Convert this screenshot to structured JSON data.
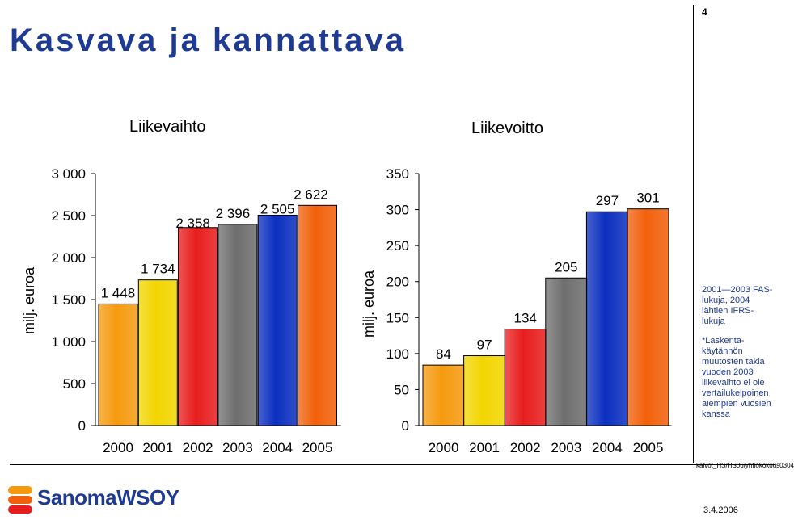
{
  "header": {
    "title": "Kasvava ja kannattava",
    "page_number": "4"
  },
  "footer": {
    "reference": "kalvot_HS/HS06/yhtiökokous0304",
    "date": "3.4.2006",
    "logo_text": "SanomaWSOY"
  },
  "notes": {
    "note1": "2001—2003 FAS-lukuja, 2004 lähtien IFRS-lukuja",
    "note2": "*Laskenta-käytännön muutosten takia vuoden 2003 liikevaihto ei ole vertailukelpoinen aiempien vuosien kanssa"
  },
  "colors": {
    "title": "#1f3a93",
    "bars": [
      "#f59a0e",
      "#f2d500",
      "#e81d1d",
      "#6e6e6e",
      "#0b2fbf",
      "#f2600a"
    ]
  },
  "chart_data": [
    {
      "type": "bar",
      "title": "Liikevaihto",
      "ylabel": "milj. euroa",
      "categories": [
        "2000",
        "2001",
        "2002",
        "2003",
        "2004",
        "2005"
      ],
      "values": [
        1448,
        1734,
        2358,
        2396,
        2505,
        2622
      ],
      "value_labels": [
        "1 448",
        "1 734",
        "2 358",
        "2 396",
        "2 505",
        "2 622"
      ],
      "yticks": [
        0,
        500,
        1000,
        1500,
        2000,
        2500,
        3000
      ],
      "ytick_labels": [
        "0",
        "500",
        "1 000",
        "1 500",
        "2 000",
        "2 500",
        "3 000"
      ],
      "ylim": [
        0,
        3000
      ]
    },
    {
      "type": "bar",
      "title": "Liikevoitto",
      "ylabel": "milj. euroa",
      "categories": [
        "2000",
        "2001",
        "2002",
        "2003",
        "2004",
        "2005"
      ],
      "values": [
        84,
        97,
        134,
        205,
        297,
        301
      ],
      "value_labels": [
        "84",
        "97",
        "134",
        "205",
        "297",
        "301"
      ],
      "yticks": [
        0,
        50,
        100,
        150,
        200,
        250,
        300,
        350
      ],
      "ytick_labels": [
        "0",
        "50",
        "100",
        "150",
        "200",
        "250",
        "300",
        "350"
      ],
      "ylim": [
        0,
        350
      ]
    }
  ]
}
